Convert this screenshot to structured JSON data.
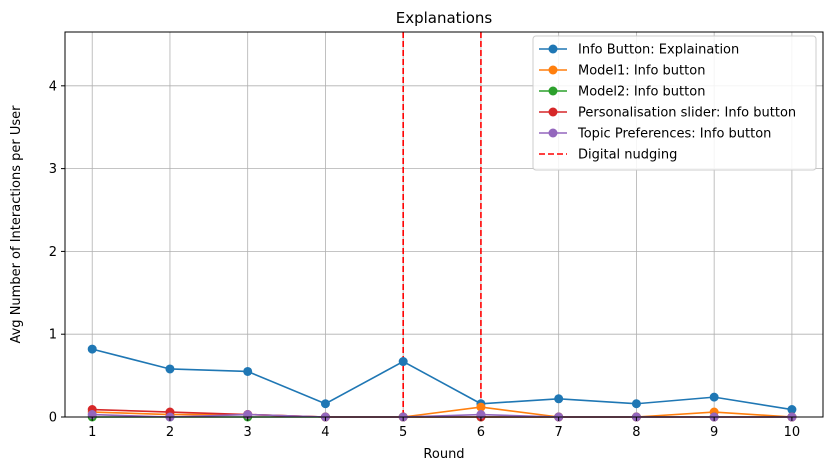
{
  "chart_data": {
    "type": "line",
    "title": "Explanations",
    "xlabel": "Round",
    "ylabel": "Avg Number of Interactions per User",
    "x": [
      1,
      2,
      3,
      4,
      5,
      6,
      7,
      8,
      9,
      10
    ],
    "xticks": [
      "1",
      "2",
      "3",
      "4",
      "5",
      "6",
      "7",
      "8",
      "9",
      "10"
    ],
    "yticks": [
      "0",
      "1",
      "2",
      "3",
      "4"
    ],
    "xlim": [
      0.65,
      10.4
    ],
    "ylim": [
      0,
      4.65
    ],
    "grid": true,
    "legend_position": "top-right",
    "series": [
      {
        "name": "Info Button: Explaination",
        "color": "#1f77b4",
        "values": [
          0.82,
          0.58,
          0.55,
          0.16,
          0.67,
          0.16,
          0.22,
          0.16,
          0.24,
          0.09
        ]
      },
      {
        "name": "Model1: Info button",
        "color": "#ff7f0e",
        "values": [
          0.06,
          0.03,
          0.03,
          0.0,
          0.0,
          0.12,
          0.0,
          0.0,
          0.06,
          0.0
        ]
      },
      {
        "name": "Model2: Info button",
        "color": "#2ca02c",
        "values": [
          0.0,
          0.0,
          0.0,
          0.0,
          0.0,
          0.0,
          0.0,
          0.0,
          0.0,
          0.0
        ]
      },
      {
        "name": "Personalisation slider: Info button",
        "color": "#d62728",
        "values": [
          0.09,
          0.06,
          0.03,
          0.0,
          0.0,
          0.0,
          0.0,
          0.0,
          0.0,
          0.0
        ]
      },
      {
        "name": "Topic Preferences: Info button",
        "color": "#9467bd",
        "values": [
          0.03,
          0.0,
          0.03,
          0.0,
          0.0,
          0.03,
          0.0,
          0.0,
          0.0,
          0.0
        ]
      }
    ],
    "vlines": [
      {
        "name": "Digital nudging",
        "color": "#ff0000",
        "style": "dashed",
        "x": [
          5,
          6
        ]
      }
    ]
  }
}
